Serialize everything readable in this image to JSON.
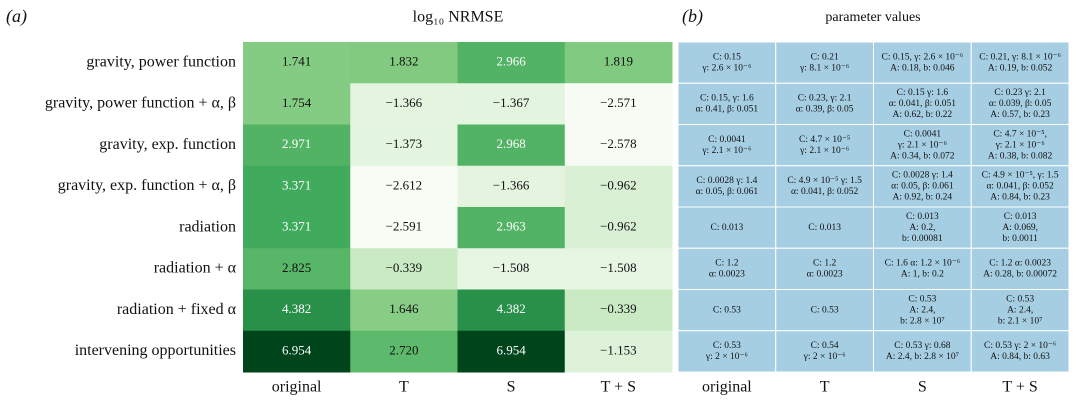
{
  "chart_data": {
    "type": "heatmap",
    "panel_label": "(a)",
    "title": "log₁₀ NRMSE",
    "x_categories": [
      "original",
      "T",
      "S",
      "T + S"
    ],
    "y_categories": [
      "gravity, power function",
      "gravity, power function + α, β",
      "gravity, exp. function",
      "gravity, exp. function + α, β",
      "radiation",
      "radiation + α",
      "radiation + fixed α",
      "intervening opportunities"
    ],
    "values": [
      [
        1.741,
        1.832,
        2.966,
        1.819
      ],
      [
        1.754,
        -1.366,
        -1.367,
        -2.571
      ],
      [
        2.971,
        -1.373,
        2.968,
        -2.578
      ],
      [
        3.371,
        -2.612,
        -1.366,
        -0.962
      ],
      [
        3.371,
        -2.591,
        2.963,
        -0.962
      ],
      [
        2.825,
        -0.339,
        -1.508,
        -1.508
      ],
      [
        4.382,
        1.646,
        4.382,
        -0.339
      ],
      [
        6.954,
        2.72,
        6.954,
        -1.153
      ]
    ],
    "value_labels": [
      [
        "1.741",
        "1.832",
        "2.966",
        "1.819"
      ],
      [
        "1.754",
        "−1.366",
        "−1.367",
        "−2.571"
      ],
      [
        "2.971",
        "−1.373",
        "2.968",
        "−2.578"
      ],
      [
        "3.371",
        "−2.612",
        "−1.366",
        "−0.962"
      ],
      [
        "3.371",
        "−2.591",
        "2.963",
        "−0.962"
      ],
      [
        "2.825",
        "−0.339",
        "−1.508",
        "−1.508"
      ],
      [
        "4.382",
        "1.646",
        "4.382",
        "−0.339"
      ],
      [
        "6.954",
        "2.720",
        "6.954",
        "−1.153"
      ]
    ],
    "colormap": [
      "#f7fcf5",
      "#e5f5e0",
      "#c7e9c0",
      "#a1d99b",
      "#74c476",
      "#41ab5d",
      "#238b45",
      "#006d2c",
      "#00441b"
    ]
  },
  "table": {
    "panel_label": "(b)",
    "title": "parameter values",
    "color": "#a6cee3",
    "columns": [
      "original",
      "T",
      "S",
      "T + S"
    ],
    "rows": [
      [
        [
          "C: 0.15",
          "γ: 2.6 × 10⁻⁶"
        ],
        [
          "C: 0.21",
          "γ: 8.1 × 10⁻⁶"
        ],
        [
          "C: 0.15, γ: 2.6 × 10⁻⁶",
          "A: 0.18, b: 0.046"
        ],
        [
          "C: 0.21, γ: 8.1 × 10⁻⁶",
          "A: 0.19, b: 0.052"
        ]
      ],
      [
        [
          "C: 0.15, γ: 1.6",
          "α: 0.41, β: 0.051"
        ],
        [
          "C: 0.23, γ: 2.1",
          "α: 0.39, β: 0.05"
        ],
        [
          "C: 0.15 γ: 1.6",
          "α: 0.041, β: 0.051",
          "A: 0.62, b: 0.22"
        ],
        [
          "C: 0.23 γ: 2.1",
          "α: 0.039, β: 0.05",
          "A: 0.57, b: 0.23"
        ]
      ],
      [
        [
          "C: 0.0041",
          "γ: 2.1 × 10⁻⁶"
        ],
        [
          "C: 4.7 × 10⁻⁵",
          "γ: 2.1 × 10⁻⁶"
        ],
        [
          "C: 0.0041",
          "γ: 2.1 × 10⁻⁶",
          "A: 0.34, b: 0.072"
        ],
        [
          "C: 4.7 × 10⁻⁵,",
          "γ: 2.1 × 10⁻⁶",
          "A: 0.38, b: 0.082"
        ]
      ],
      [
        [
          "C: 0.0028 γ: 1.4",
          "α: 0.05, β: 0.061"
        ],
        [
          "C: 4.9 × 10⁻⁵ γ: 1.5",
          "α: 0.041, β: 0.052"
        ],
        [
          "C: 0.0028 γ: 1.4",
          "α: 0.05, β: 0.061",
          "A: 0.92, b: 0.24"
        ],
        [
          "C: 4.9 × 10⁻⁵, γ: 1.5",
          "α: 0.041, β: 0.052",
          "A: 0.84, b: 0.23"
        ]
      ],
      [
        [
          "C: 0.013"
        ],
        [
          "C: 0.013"
        ],
        [
          "C: 0.013",
          "A: 0.2,",
          "b: 0.00081"
        ],
        [
          "C: 0.013",
          "A: 0.069,",
          "b: 0.0011"
        ]
      ],
      [
        [
          "C: 1.2",
          "α: 0.0023"
        ],
        [
          "C: 1.2",
          "α: 0.0023"
        ],
        [
          "C: 1.6 α: 1.2 × 10⁻⁶",
          "A: 1, b: 0.2"
        ],
        [
          "C: 1.2 α: 0.0023",
          "A: 0.28, b: 0.00072"
        ]
      ],
      [
        [
          "C: 0.53"
        ],
        [
          "C: 0.53"
        ],
        [
          "C: 0.53",
          "A: 2.4,",
          "b: 2.8 × 10⁷"
        ],
        [
          "C: 0.53",
          "A: 2.4,",
          "b: 2.1 × 10⁷"
        ]
      ],
      [
        [
          "C: 0.53",
          "γ: 2 × 10⁻⁶"
        ],
        [
          "C: 0.54",
          "γ: 2 × 10⁻⁶"
        ],
        [
          "C: 0.53 γ: 0.68",
          "A: 2.4, b: 2.8 × 10⁷"
        ],
        [
          "C: 0.53 γ: 2 × 10⁻⁶",
          "A: 0.84, b: 0.63"
        ]
      ]
    ]
  }
}
